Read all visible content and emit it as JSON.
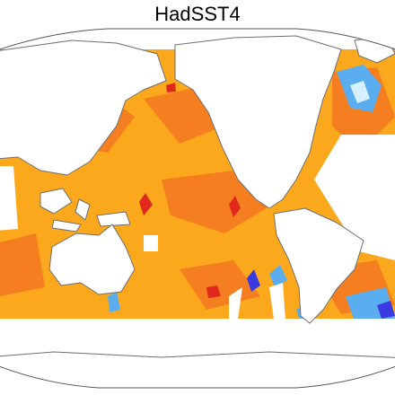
{
  "title": "HadSST4"
}
